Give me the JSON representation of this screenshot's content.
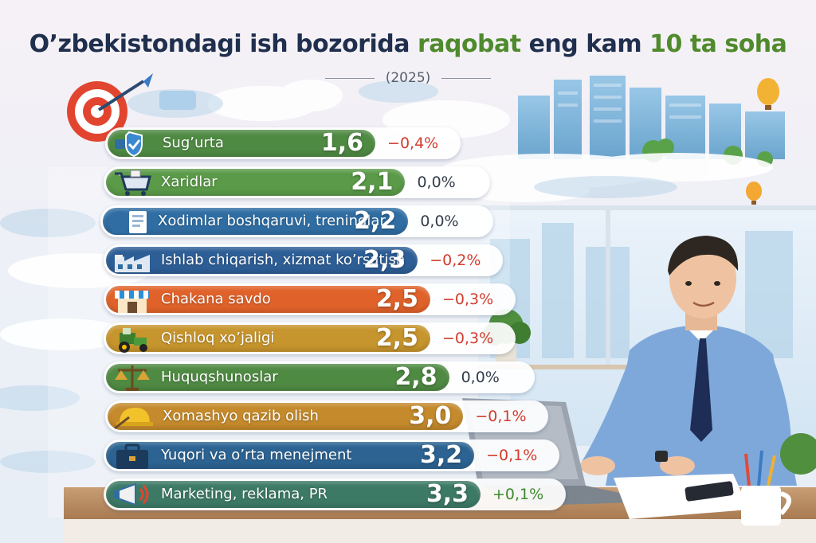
{
  "title": {
    "part1": "O’zbekistondagi ish bozorida",
    "part2": "raqobat",
    "part3": "eng kam",
    "part4": "10",
    "part5": "ta soha"
  },
  "subtitle": "(2025)",
  "colors": {
    "positive": "#3d8a2c",
    "negative": "#d23c2e",
    "neutral": "#333d4b"
  },
  "chart_data": {
    "type": "bar",
    "categories": [
      "Sug’urta",
      "Xaridlar",
      "Xodimlar boshqaruvi, treninglar",
      "Ishlab chiqarish, xizmat ko’rsatish",
      "Chakana savdo",
      "Qishloq xo’jaligi",
      "Huquqshunoslar",
      "Xomashyo qazib olish",
      "Yuqori va o’rta menejment",
      "Marketing, reklama, PR"
    ],
    "values": [
      1.6,
      2.1,
      2.2,
      2.3,
      2.5,
      2.5,
      2.8,
      3.0,
      3.2,
      3.3
    ],
    "value_labels": [
      "1,6",
      "2,1",
      "2,2",
      "2,3",
      "2,5",
      "2,5",
      "2,8",
      "3,0",
      "3,2",
      "3,3"
    ],
    "changes": [
      "−0,4%",
      "0,0%",
      "0,0%",
      "−0,2%",
      "−0,3%",
      "−0,3%",
      "0,0%",
      "−0,1%",
      "−0,1%",
      "+0,1%"
    ],
    "change_values": [
      -0.4,
      0.0,
      0.0,
      -0.2,
      -0.3,
      -0.3,
      0.0,
      -0.1,
      -0.1,
      0.1
    ],
    "bar_colors": [
      "#4f8a43",
      "#5a9a48",
      "#2f6da3",
      "#2d5e96",
      "#e0622a",
      "#c7952d",
      "#4f8a43",
      "#c48a2c",
      "#2c6392",
      "#3d7a66"
    ],
    "icons": [
      "shield-check-icon",
      "shopping-cart-icon",
      "hr-person-icon",
      "factory-icon",
      "shop-icon",
      "tractor-icon",
      "scales-icon",
      "mining-helmet-icon",
      "briefcase-icon",
      "megaphone-icon"
    ]
  }
}
